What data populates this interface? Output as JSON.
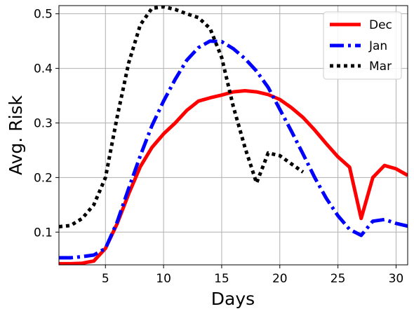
{
  "chart_data": {
    "type": "line",
    "title": "",
    "xlabel": "Days",
    "ylabel": "Avg. Risk",
    "xlim": [
      1,
      31
    ],
    "ylim": [
      0.04,
      0.515
    ],
    "xticks": [
      5,
      10,
      15,
      20,
      25,
      30
    ],
    "yticks": [
      0.1,
      0.2,
      0.3,
      0.4,
      0.5
    ],
    "grid": true,
    "legend_position": "top-right",
    "series": [
      {
        "name": "Dec",
        "color": "#ff0000",
        "style": "solid",
        "x": [
          1,
          2,
          3,
          4,
          5,
          6,
          7,
          8,
          9,
          10,
          11,
          12,
          13,
          14,
          15,
          16,
          17,
          18,
          19,
          20,
          21,
          22,
          23,
          24,
          25,
          26,
          27,
          28,
          29,
          30,
          31
        ],
        "y": [
          0.042,
          0.042,
          0.043,
          0.047,
          0.07,
          0.115,
          0.17,
          0.22,
          0.255,
          0.28,
          0.3,
          0.323,
          0.34,
          0.346,
          0.351,
          0.357,
          0.359,
          0.357,
          0.352,
          0.343,
          0.328,
          0.31,
          0.287,
          0.262,
          0.238,
          0.219,
          0.125,
          0.2,
          0.222,
          0.216,
          0.204
        ]
      },
      {
        "name": "Jan",
        "color": "#0000ff",
        "style": "dashdot",
        "x": [
          1,
          2,
          3,
          4,
          5,
          6,
          7,
          8,
          9,
          10,
          11,
          12,
          13,
          14,
          15,
          16,
          17,
          18,
          19,
          20,
          21,
          22,
          23,
          24,
          25,
          26,
          27,
          28,
          29,
          30,
          31
        ],
        "y": [
          0.053,
          0.053,
          0.055,
          0.058,
          0.07,
          0.118,
          0.18,
          0.24,
          0.295,
          0.34,
          0.38,
          0.415,
          0.438,
          0.45,
          0.449,
          0.436,
          0.418,
          0.395,
          0.365,
          0.325,
          0.285,
          0.243,
          0.2,
          0.162,
          0.13,
          0.105,
          0.094,
          0.12,
          0.123,
          0.116,
          0.111
        ]
      },
      {
        "name": "Mar",
        "color": "#000000",
        "style": "dotted",
        "x": [
          1,
          2,
          3,
          4,
          5,
          6,
          7,
          8,
          9,
          10,
          11,
          12,
          13,
          14,
          15,
          16,
          17,
          18,
          19,
          20,
          21,
          22
        ],
        "y": [
          0.11,
          0.112,
          0.125,
          0.15,
          0.2,
          0.31,
          0.41,
          0.48,
          0.51,
          0.513,
          0.508,
          0.5,
          0.493,
          0.473,
          0.42,
          0.33,
          0.255,
          0.19,
          0.245,
          0.24,
          0.225,
          0.21
        ]
      }
    ]
  }
}
